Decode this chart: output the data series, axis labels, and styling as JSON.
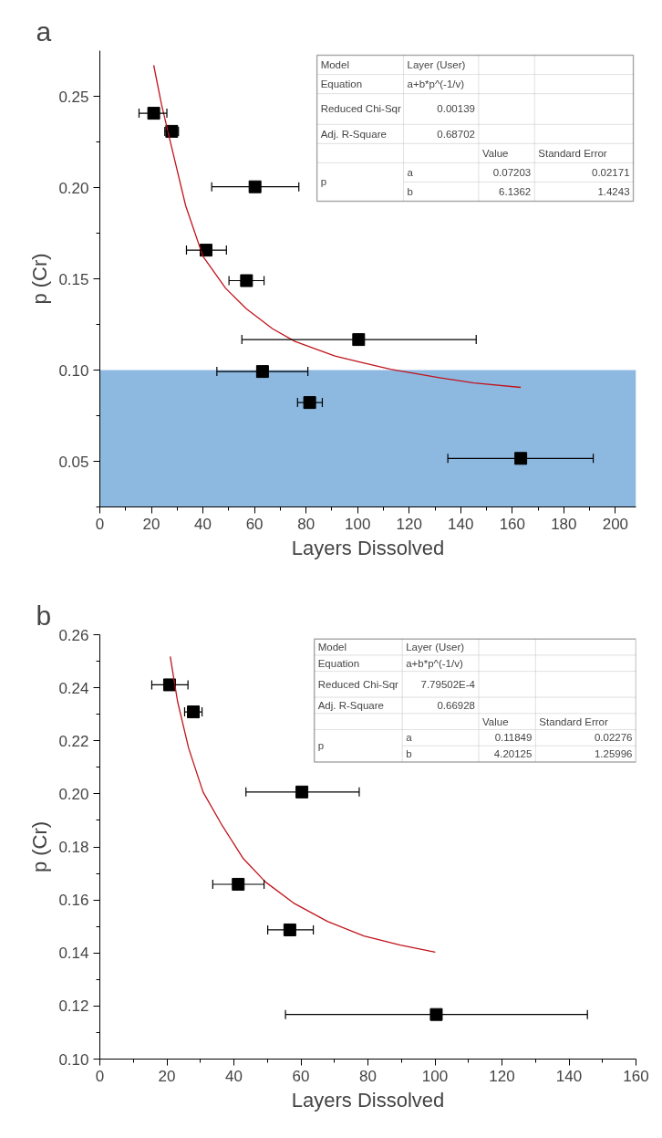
{
  "chart_data": [
    {
      "type": "scatter",
      "title": "a",
      "xlabel": "Layers Dissolved",
      "ylabel": "p (Cr)",
      "marker": "square",
      "grid": false,
      "xlim": [
        0,
        208
      ],
      "ylim": [
        0.025,
        0.275
      ],
      "xticks": [
        0,
        {
          "value": 10,
          "label": null
        },
        20,
        {
          "value": 30,
          "label": null
        },
        40,
        {
          "value": 50,
          "label": null
        },
        60,
        {
          "value": 70,
          "label": null
        },
        80,
        {
          "value": 90,
          "label": null
        },
        100,
        {
          "value": 110,
          "label": null
        },
        120,
        {
          "value": 130,
          "label": null
        },
        140,
        {
          "value": 150,
          "label": null
        },
        160,
        {
          "value": 170,
          "label": null
        },
        180,
        {
          "value": 190,
          "label": null
        },
        200
      ],
      "yticks": [
        {
          "value": 0.025,
          "label": null
        },
        0.05,
        {
          "value": 0.075,
          "label": null
        },
        {
          "value": 0.1,
          "label": "0.10"
        },
        {
          "value": 0.125,
          "label": null
        },
        {
          "value": 0.15,
          "label": "0.15"
        },
        {
          "value": 0.175,
          "label": null
        },
        {
          "value": 0.2,
          "label": "0.20"
        },
        {
          "value": 0.225,
          "label": null
        },
        0.25
      ],
      "series": [
        {
          "color": "#000000",
          "x": [
            20.9,
            27.9,
            60.2,
            41.2,
            56.9,
            100.4,
            63.1,
            81.4,
            163.3
          ],
          "values": [
            0.2407,
            0.2308,
            0.2004,
            0.1657,
            0.149,
            0.1167,
            0.0992,
            0.0822,
            0.0516
          ],
          "xerrors": [
            [
              15.2,
              26.0
            ],
            [
              25.2,
              30.5
            ],
            [
              43.4,
              77.2
            ],
            [
              33.6,
              49.1
            ],
            [
              50.1,
              63.7
            ],
            [
              55.1,
              146.0
            ],
            [
              45.4,
              80.7
            ],
            [
              76.7,
              86.3
            ],
            [
              135.0,
              191.4
            ]
          ]
        },
        {
          "type": "line",
          "marker": "none",
          "color": "#c0141c",
          "x": [
            20.9,
            23.9,
            27.9,
            33.3,
            40.0,
            48.8,
            56.9,
            67.0,
            75.7,
            91.2,
            100.7,
            112.8,
            131.7,
            145.1,
            163.3
          ],
          "values": [
            0.267,
            0.2457,
            0.2218,
            0.19,
            0.1623,
            0.1448,
            0.1335,
            0.1226,
            0.1157,
            0.1077,
            0.1044,
            0.1004,
            0.0958,
            0.0929,
            0.0905
          ]
        }
      ],
      "bands": [
        {
          "axis": "y",
          "from": 0.025,
          "to": 0.1,
          "color": "#5a99d3"
        }
      ],
      "annotations": [
        "Model",
        "Layer (User)",
        "Equation",
        "a+b*p^(-1/v)",
        "Reduced Chi-Sqr",
        "0.00139",
        "Adj. R-Square",
        "0.68702",
        "Value",
        "Standard Error",
        "p",
        "a",
        "0.07203",
        "0.02171",
        "b",
        "6.1362",
        "1.4243"
      ]
    },
    {
      "type": "scatter",
      "title": "b",
      "xlabel": "Layers Dissolved",
      "ylabel": "p (Cr)",
      "marker": "square",
      "grid": false,
      "xlim": [
        0,
        160
      ],
      "ylim": [
        0.1,
        0.26
      ],
      "xticks": [
        0,
        {
          "value": 10,
          "label": null
        },
        20,
        {
          "value": 30,
          "label": null
        },
        40,
        {
          "value": 50,
          "label": null
        },
        60,
        {
          "value": 70,
          "label": null
        },
        80,
        {
          "value": 90,
          "label": null
        },
        100,
        {
          "value": 110,
          "label": null
        },
        120,
        {
          "value": 130,
          "label": null
        },
        140,
        {
          "value": 150,
          "label": null
        },
        160
      ],
      "yticks": [
        {
          "value": 0.1,
          "label": "0.10"
        },
        {
          "value": 0.11,
          "label": null
        },
        0.12,
        {
          "value": 0.13,
          "label": null
        },
        0.14,
        {
          "value": 0.15,
          "label": null
        },
        0.16,
        {
          "value": 0.17,
          "label": null
        },
        0.18,
        {
          "value": 0.19,
          "label": null
        },
        {
          "value": 0.2,
          "label": "0.20"
        },
        {
          "value": 0.21,
          "label": null
        },
        0.22,
        {
          "value": 0.23,
          "label": null
        },
        0.24,
        {
          "value": 0.25,
          "label": null
        },
        0.26
      ],
      "series": [
        {
          "color": "#000000",
          "x": [
            20.8,
            27.9,
            60.3,
            41.3,
            56.7,
            100.4
          ],
          "values": [
            0.2411,
            0.2309,
            0.2007,
            0.1659,
            0.1487,
            0.1168
          ],
          "xerrors": [
            [
              15.5,
              26.3
            ],
            [
              25.3,
              30.5
            ],
            [
              43.6,
              77.4
            ],
            [
              33.7,
              49.0
            ],
            [
              50.1,
              63.7
            ],
            [
              55.4,
              145.5
            ]
          ]
        },
        {
          "type": "line",
          "marker": "none",
          "color": "#c0141c",
          "x": [
            21.0,
            23.2,
            26.5,
            30.8,
            36.3,
            42.8,
            49.4,
            58.1,
            67.9,
            78.8,
            89.7,
            100.1
          ],
          "values": [
            0.2518,
            0.2348,
            0.2172,
            0.2007,
            0.1885,
            0.1756,
            0.1668,
            0.1586,
            0.1519,
            0.1464,
            0.143,
            0.1403
          ]
        }
      ],
      "annotations": [
        "Model",
        "Layer (User)",
        "Equation",
        "a+b*p^(-1/v)",
        "Reduced Chi-Sqr",
        "7.79502E-4",
        "Adj. R-Square",
        "0.66928",
        "Value",
        "Standard Error",
        "p",
        "a",
        "0.11849",
        "0.02276",
        "b",
        "4.20125",
        "1.25996"
      ]
    }
  ]
}
